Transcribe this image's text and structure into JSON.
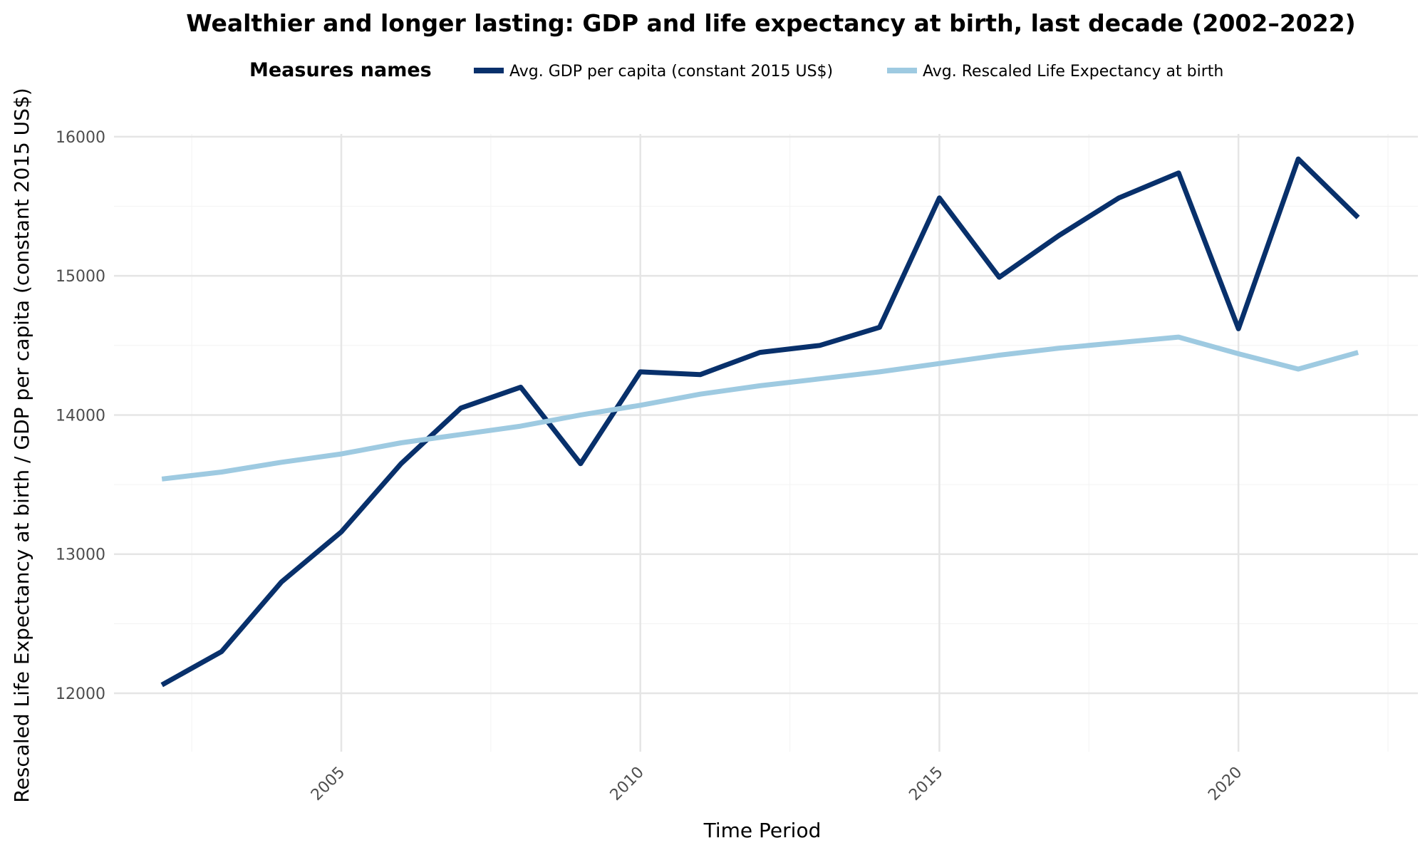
{
  "chart_data": {
    "type": "line",
    "title": "Wealthier and longer lasting: GDP and life expectancy at birth, last decade (2002–2022)",
    "xlabel": "Time Period",
    "ylabel": "Rescaled Life Expectancy at birth / GDP per capita (constant 2015 US$)",
    "legend_title": "Measures names",
    "legend_position": "top",
    "grid": true,
    "xlim": [
      2001.2,
      2023.0
    ],
    "ylim": [
      11580,
      16020
    ],
    "x_ticks": [
      "2005",
      "2010",
      "2015",
      "2020"
    ],
    "y_ticks": [
      "12000",
      "13000",
      "14000",
      "15000",
      "16000"
    ],
    "x": [
      2002,
      2003,
      2004,
      2005,
      2006,
      2007,
      2008,
      2009,
      2010,
      2011,
      2012,
      2013,
      2014,
      2015,
      2016,
      2017,
      2018,
      2019,
      2020,
      2021,
      2022
    ],
    "series": [
      {
        "name": "Avg. GDP per capita (constant 2015 US$)",
        "color": "#08306b",
        "values": [
          12060,
          12300,
          12800,
          13160,
          13650,
          14050,
          14200,
          13650,
          14310,
          14290,
          14450,
          14500,
          14630,
          15560,
          14990,
          15290,
          15560,
          15740,
          14620,
          15840,
          15420
        ]
      },
      {
        "name": "Avg. Rescaled Life Expectancy at birth",
        "color": "#9ecae1",
        "values": [
          13540,
          13590,
          13660,
          13720,
          13800,
          13860,
          13920,
          14000,
          14070,
          14150,
          14210,
          14260,
          14310,
          14370,
          14430,
          14480,
          14520,
          14560,
          14440,
          14330,
          14450
        ]
      }
    ]
  }
}
